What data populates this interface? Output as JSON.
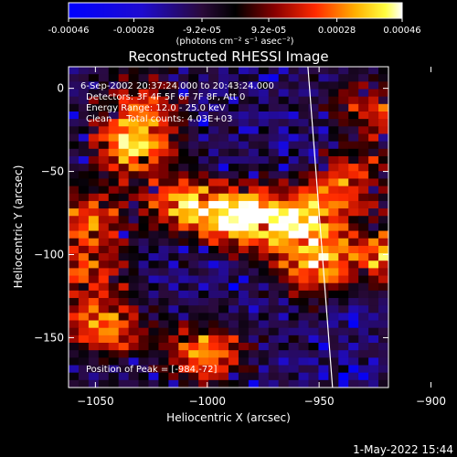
{
  "colorbar": {
    "tick_labels": [
      "-0.00046",
      "-0.00028",
      "-9.2e-05",
      "9.2e-05",
      "0.00028",
      "0.00046"
    ],
    "ticks": [
      -0.00046,
      -0.00028,
      -9.2e-05,
      9.2e-05,
      0.00028,
      0.00046
    ],
    "range": [
      -0.00046,
      0.00046
    ],
    "units_label": "(photons cm⁻² s⁻¹ asec⁻²)",
    "colormap": [
      "#0000ff",
      "#000000",
      "#ff0000",
      "#ffff00",
      "#ffffff"
    ]
  },
  "chart_data": {
    "type": "heatmap",
    "title": "Reconstructed RHESSI Image",
    "xlabel": "Heliocentric X (arcsec)",
    "ylabel": "Heliocentric Y (arcsec)",
    "xlim": [
      -1062,
      -919
    ],
    "ylim": [
      -180,
      13
    ],
    "x_ticks": [
      -1050,
      -1000,
      -950,
      -900
    ],
    "y_ticks": [
      0,
      -50,
      -100,
      -150
    ],
    "x_tick_labels": [
      "−1050",
      "−1000",
      "−950",
      "−900"
    ],
    "y_tick_labels": [
      "0",
      "−50",
      "−100",
      "−150"
    ],
    "limb_line": [
      [
        -955,
        13
      ],
      [
        -944,
        -180
      ]
    ],
    "peak": [
      -984,
      -72
    ],
    "hot_regions": [
      {
        "x": -1033,
        "y": -35,
        "value": 0.00042
      },
      {
        "x": -1010,
        "y": -70,
        "value": 0.0003
      },
      {
        "x": -985,
        "y": -78,
        "value": 0.00046
      },
      {
        "x": -958,
        "y": -82,
        "value": 0.0004
      },
      {
        "x": -950,
        "y": -108,
        "value": 0.0003
      },
      {
        "x": -1053,
        "y": -78,
        "value": 0.0003
      },
      {
        "x": -1045,
        "y": -145,
        "value": 0.00032
      },
      {
        "x": -1000,
        "y": -160,
        "value": 0.00034
      },
      {
        "x": -915,
        "y": -100,
        "value": 0.00036
      },
      {
        "x": -938,
        "y": -58,
        "value": 0.00026
      },
      {
        "x": -925,
        "y": -10,
        "value": 0.00022
      },
      {
        "x": -1030,
        "y": -8,
        "value": 0.00018
      },
      {
        "x": -905,
        "y": -40,
        "value": 0.00024
      },
      {
        "x": -1055,
        "y": -112,
        "value": 0.00022
      }
    ],
    "annotations": [
      "6-Sep-2002 20:37:24.000 to 20:43:24.000",
      "Detectors: 3F 4F 5F 6F 7F 8F, Att 0",
      "Energy Range: 12.0 - 25.0 keV",
      "Clean     Total counts: 4.03E+03"
    ],
    "peak_label": "Position of Peak = [-984,-72]"
  },
  "timestamp": "1-May-2022 15:44"
}
